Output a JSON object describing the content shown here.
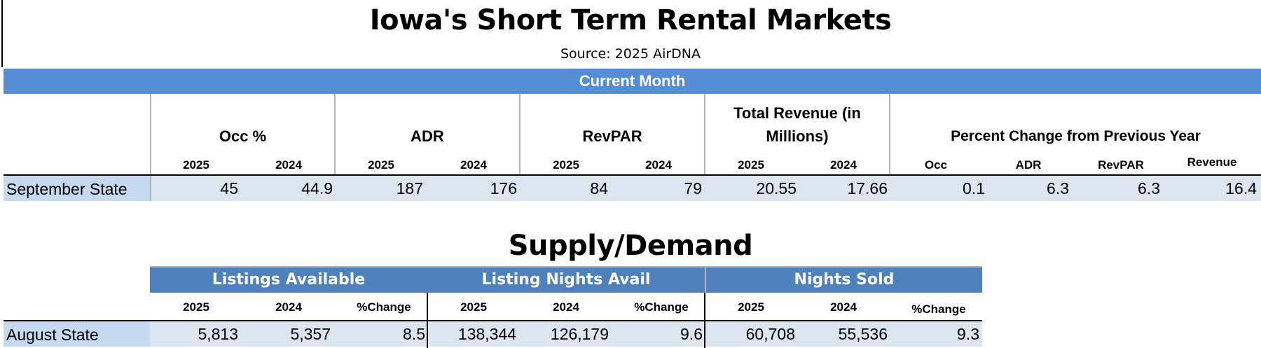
{
  "title": "Iowa's Short Term Rental Markets",
  "source": "Source:  2025 AirDNA",
  "current_month": {
    "band": "Current Month",
    "groups": [
      {
        "label": "Occ %",
        "years": [
          "2025",
          "2024"
        ]
      },
      {
        "label": "ADR",
        "years": [
          "2025",
          "2024"
        ]
      },
      {
        "label": "RevPAR",
        "years": [
          "2025",
          "2024"
        ]
      },
      {
        "label_line1": "Total Revenue (in",
        "label_line2": "Millions)",
        "years": [
          "2025",
          "2024"
        ]
      }
    ],
    "pct_change": {
      "label": "Percent Change from Previous Year",
      "cols": [
        "Occ",
        "ADR",
        "RevPAR",
        "Revenue"
      ]
    },
    "row": {
      "label": "September State",
      "values": [
        "45",
        "44.9",
        "187",
        "176",
        "84",
        "79",
        "20.55",
        "17.66"
      ],
      "pct": [
        "0.1",
        "6.3",
        "6.3",
        "16.4"
      ]
    }
  },
  "supply_demand": {
    "title": "Supply/Demand",
    "groups": [
      {
        "label": "Listings Available",
        "cols": [
          "2025",
          "2024",
          "%Change"
        ]
      },
      {
        "label": "Listing Nights Avail",
        "cols": [
          "2025",
          "2024",
          "%Change"
        ]
      },
      {
        "label": "Nights Sold",
        "cols": [
          "2025",
          "2024",
          "%Change"
        ]
      }
    ],
    "row": {
      "label": "August State",
      "values": [
        "5,813",
        "5,357",
        "8.5",
        "138,344",
        "126,179",
        "9.6",
        "60,708",
        "55,536",
        "9.3"
      ]
    }
  },
  "colors": {
    "band": "#558ed5",
    "sd_band": "#4f81bd",
    "row_bg": "#dce6f1",
    "label_bg": "#c5d9f1"
  }
}
